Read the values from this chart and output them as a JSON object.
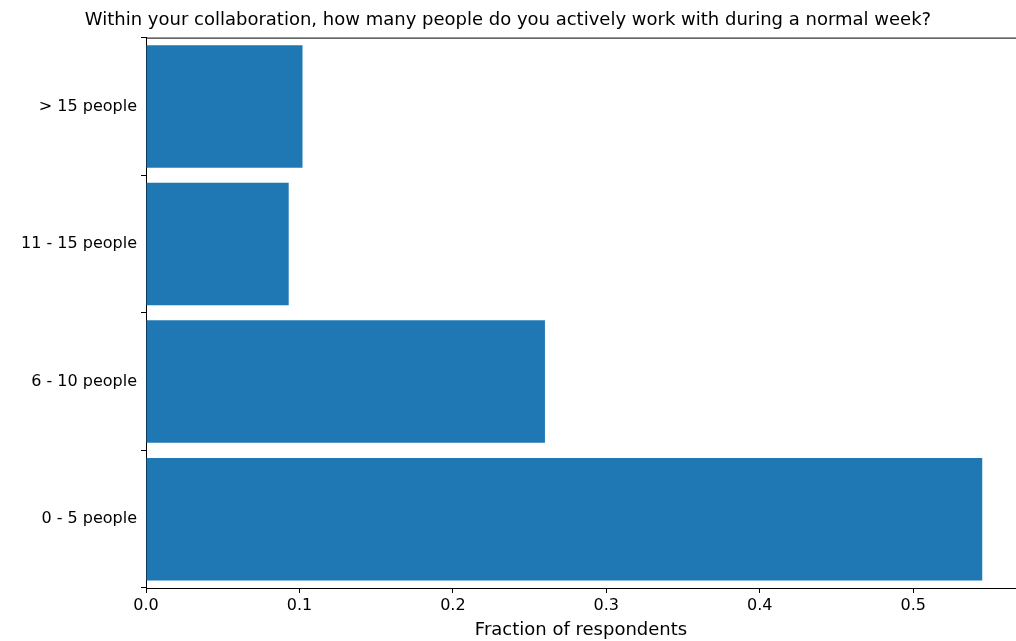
{
  "chart_data": {
    "type": "bar",
    "orientation": "horizontal",
    "title": "Within your collaboration, how many people do you actively work with during a normal week?",
    "xlabel": "Fraction of respondents",
    "categories": [
      "> 15 people",
      "11 - 15 people",
      "6 - 10 people",
      "0 - 5 people"
    ],
    "values": [
      0.102,
      0.093,
      0.26,
      0.545
    ],
    "color": "#1f77b4",
    "xlim": [
      0,
      0.567
    ],
    "xticks": [
      {
        "value": 0,
        "label": "0.0"
      },
      0.1,
      0.2,
      0.3,
      0.4,
      0.5
    ],
    "grid": false,
    "legend": false
  }
}
